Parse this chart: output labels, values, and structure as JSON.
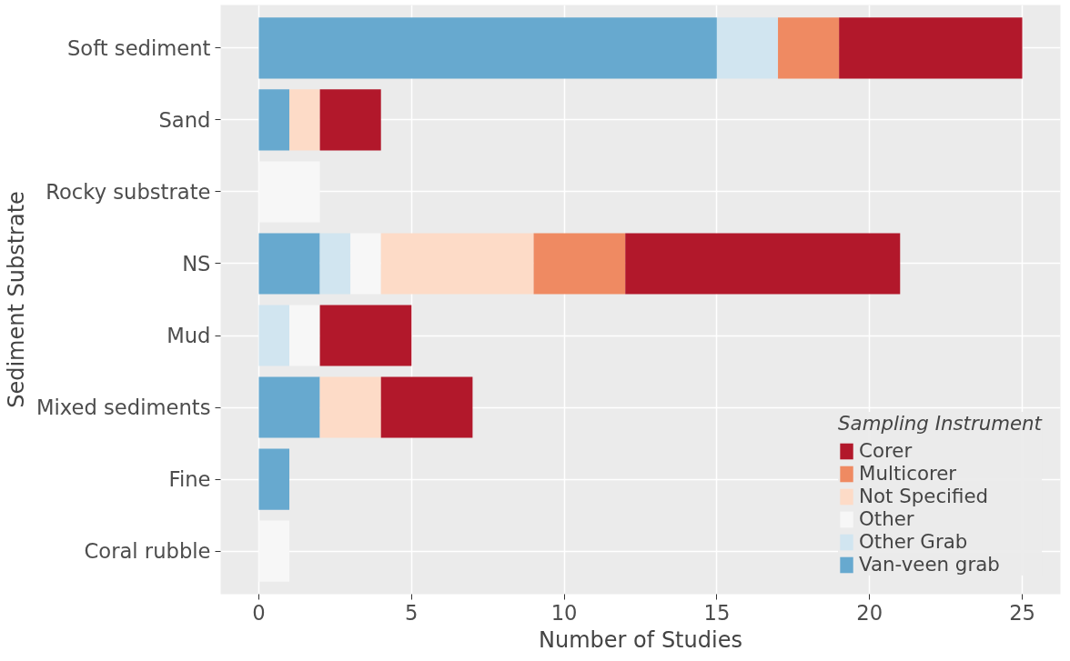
{
  "chart_data": {
    "type": "bar",
    "orientation": "horizontal",
    "stacked": true,
    "xlabel": "Number of Studies",
    "ylabel": "Sediment Substrate",
    "legend_title": "Sampling Instrument",
    "categories": [
      "Soft sediment",
      "Sand",
      "Rocky substrate",
      "NS",
      "Mud",
      "Mixed sediments",
      "Fine",
      "Coral rubble"
    ],
    "series": [
      {
        "name": "Van-veen grab",
        "color": "#67a9cf",
        "values": [
          15,
          1,
          null,
          2,
          null,
          2,
          1,
          null
        ]
      },
      {
        "name": "Other Grab",
        "color": "#d1e5f0",
        "values": [
          2,
          null,
          null,
          1,
          1,
          null,
          null,
          null
        ]
      },
      {
        "name": "Other",
        "color": "#f7f7f7",
        "values": [
          null,
          null,
          2,
          1,
          1,
          null,
          null,
          1
        ]
      },
      {
        "name": "Not Specified",
        "color": "#fddbc7",
        "values": [
          null,
          1,
          null,
          5,
          null,
          2,
          null,
          null
        ]
      },
      {
        "name": "Multicorer",
        "color": "#ef8a62",
        "values": [
          2,
          null,
          null,
          3,
          null,
          null,
          null,
          null
        ]
      },
      {
        "name": "Corer",
        "color": "#b2182b",
        "values": [
          6,
          2,
          null,
          9,
          3,
          3,
          null,
          null
        ]
      }
    ],
    "xlim": [
      -1.25,
      26.25
    ],
    "xticks": [
      0,
      5,
      10,
      15,
      20,
      25
    ],
    "grid": true,
    "legend": "bottom right"
  }
}
